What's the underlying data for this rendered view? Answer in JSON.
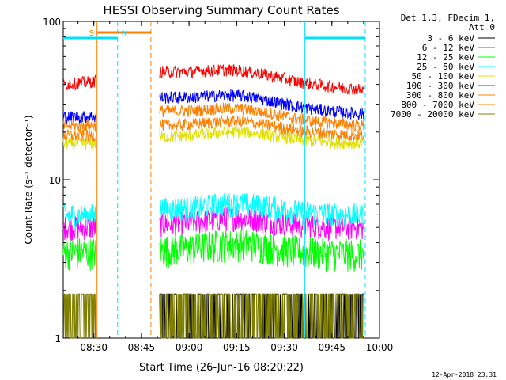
{
  "chart_data": {
    "type": "line",
    "title": "HESSI Observing Summary Count Rates",
    "xlabel": "Start Time (26-Jun-16 08:20:22)",
    "ylabel": "Count Rate (s⁻¹ detector⁻¹)",
    "yscale": "log",
    "xlim": [
      "08:20:22",
      "10:00"
    ],
    "ylim": [
      1,
      100
    ],
    "x_ticks": [
      "08:30",
      "08:45",
      "09:00",
      "09:15",
      "09:30",
      "09:45",
      "10:00"
    ],
    "y_ticks": [
      "1",
      "10",
      "100"
    ],
    "grid": false,
    "legend_position": "right",
    "legend_header": [
      "Det 1,3, FDecim 1,",
      "Att 0"
    ],
    "footer_date": "12-Apr-2018 23:31",
    "markers": [
      {
        "label": "S",
        "color": "#ff8000",
        "style": "solid",
        "time": "08:31:00",
        "bar_start": "08:31:00",
        "bar_end": "08:48:00"
      },
      {
        "label": "N",
        "color": "#00e0ff",
        "style": "dashed",
        "time": "08:37:30",
        "bar_start": "08:20:22",
        "bar_end": "08:37:30"
      }
    ],
    "extra_lines": [
      {
        "color": "#ff8000",
        "style": "dashed",
        "time": "08:48:00"
      },
      {
        "color": "#00e0ff",
        "style": "solid",
        "time": "09:36:30",
        "bar_start": "09:36:30",
        "bar_end": "09:55:30"
      },
      {
        "color": "#00e0ff",
        "style": "dashed",
        "time": "09:55:30"
      }
    ],
    "segments": [
      {
        "start": "08:20:22",
        "end": "08:30:45"
      },
      {
        "start": "08:50:45",
        "end": "09:55:00"
      }
    ],
    "series": [
      {
        "name": "3 - 6 keV",
        "color": "#000000",
        "y1": [
          1.0,
          1.0
        ],
        "y2": [
          1.0,
          1.9
        ],
        "noise": 0.0
      },
      {
        "name": "6 - 12 keV",
        "color": "#ff00ff",
        "y1": [
          5.0,
          5.0
        ],
        "y2": [
          5.2,
          5.0
        ],
        "noise": 0.06
      },
      {
        "name": "12 - 25 keV",
        "color": "#00ff00",
        "y1": [
          3.5,
          3.5
        ],
        "y2": [
          3.6,
          3.4
        ],
        "noise": 0.08
      },
      {
        "name": "25 - 50 keV",
        "color": "#00ffff",
        "y1": [
          6.0,
          6.0
        ],
        "y2": [
          6.5,
          6.0
        ],
        "noise": 0.06
      },
      {
        "name": "50 - 100 keV",
        "color": "#e0e000",
        "y1": [
          17.0,
          17.0
        ],
        "y2": [
          18.5,
          17.0
        ],
        "noise": 0.03
      },
      {
        "name": "100 - 300 keV",
        "color": "#ff0000",
        "y1": [
          40.0,
          42.0
        ],
        "y2": [
          48.0,
          37.0
        ],
        "noise": 0.03
      },
      {
        "name": "300 - 800 keV",
        "color": "#ff8000",
        "y1": [
          22.0,
          22.0
        ],
        "y2": [
          27.0,
          22.0
        ],
        "noise": 0.03
      },
      {
        "name": "800 - 7000 keV",
        "color": "#ff8000",
        "y1": [
          19.0,
          19.0
        ],
        "y2": [
          22.0,
          19.0
        ],
        "noise": 0.03
      },
      {
        "name": "7000 - 20000 keV",
        "color": "#808000",
        "y1": [
          1.0,
          1.9
        ],
        "y2": [
          1.0,
          1.9
        ],
        "noise": 0.0
      }
    ],
    "line_colors_note": "",
    "blue_series": {
      "name": "",
      "color": "#0000ff",
      "y1": [
        25.0,
        25.0
      ],
      "y2": [
        33.0,
        26.0
      ],
      "noise": 0.03
    }
  }
}
